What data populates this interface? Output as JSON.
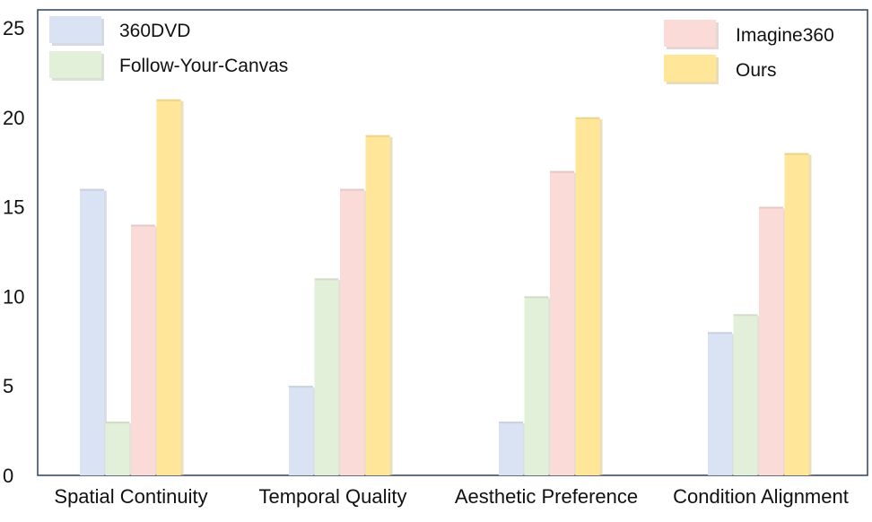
{
  "chart_data": {
    "type": "bar",
    "categories": [
      "Spatial Continuity",
      "Temporal Quality",
      "Aesthetic Preference",
      "Condition Alignment"
    ],
    "series": [
      {
        "name": "360DVD",
        "values": [
          16,
          5,
          3,
          8
        ],
        "color": "#dae3f3"
      },
      {
        "name": "Follow-Your-Canvas",
        "values": [
          3,
          11,
          10,
          9
        ],
        "color": "#e2efd9"
      },
      {
        "name": "Imagine360",
        "values": [
          14,
          16,
          17,
          15
        ],
        "color": "#fadbd8"
      },
      {
        "name": "Ours",
        "values": [
          21,
          19,
          20,
          18
        ],
        "color": "#ffe699"
      }
    ],
    "yticks": [
      0,
      5,
      10,
      15,
      20,
      25
    ],
    "ylim": [
      0,
      26
    ],
    "title": "",
    "xlabel": "",
    "ylabel": "",
    "grid": false,
    "legend": {
      "left": [
        "360DVD",
        "Follow-Your-Canvas"
      ],
      "right": [
        "Imagine360",
        "Ours"
      ],
      "placement": "top"
    },
    "frame_color": "#2f3f5f"
  }
}
